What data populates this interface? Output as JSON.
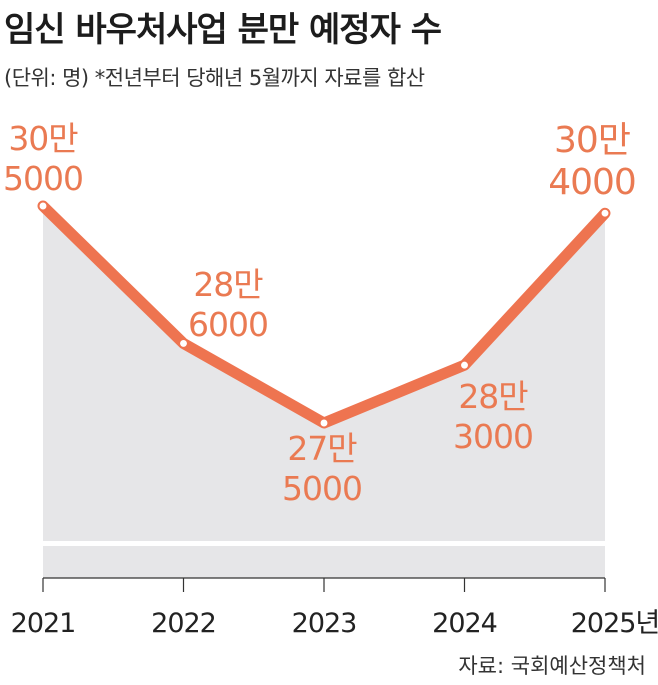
{
  "title": "임신 바우처사업 분만 예정자 수",
  "subtitle": "(단위: 명) *전년부터 당해년 5월까지 자료를 합산",
  "source": "자료: 국회예산정책처",
  "colors": {
    "line": "#ee7450",
    "area": "#e6e6e8",
    "label": "#ea7a52",
    "axis": "#333333"
  },
  "chart_data": {
    "type": "line",
    "x": [
      "2021",
      "2022",
      "2023",
      "2024",
      "2025년"
    ],
    "values": [
      305000,
      286000,
      275000,
      283000,
      304000
    ],
    "data_labels": [
      [
        "30만",
        "5000"
      ],
      [
        "28만",
        "6000"
      ],
      [
        "27만",
        "5000"
      ],
      [
        "28만",
        "3000"
      ],
      [
        "30만",
        "4000"
      ]
    ],
    "axis_break": true,
    "grid": false,
    "legend": "none"
  }
}
